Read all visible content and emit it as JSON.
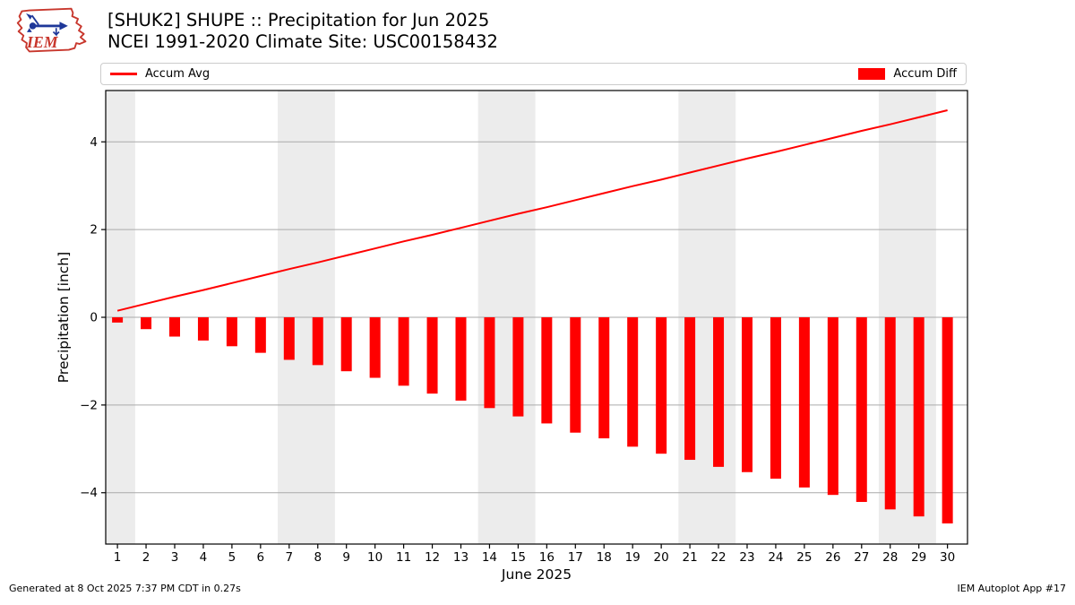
{
  "header": {
    "logo_text": "IEM",
    "title_line1": "[SHUK2] SHUPE :: Precipitation for Jun 2025",
    "title_line2": "NCEI 1991-2020 Climate Site: USC00158432"
  },
  "legend": {
    "avg_label": "Accum Avg",
    "diff_label": "Accum Diff"
  },
  "footer": {
    "generated": "Generated at 8 Oct 2025 7:37 PM CDT in 0.27s",
    "app": "IEM Autoplot App #17"
  },
  "colors": {
    "accent_red": "#ff0000",
    "grid": "#aaaaaa",
    "band": "#ececec",
    "axis": "#000000",
    "legend_border": "#cccccc",
    "logo_red": "#c8372d",
    "logo_blue": "#1e3799"
  },
  "chart_data": {
    "type": "bar",
    "title": "[SHUK2] SHUPE :: Precipitation for Jun 2025",
    "subtitle": "NCEI 1991-2020 Climate Site: USC00158432",
    "xlabel": "June 2025",
    "ylabel": "Precipitation [inch]",
    "xlim": [
      0.59,
      30.7
    ],
    "ylim": [
      -5.17,
      5.17
    ],
    "grid": true,
    "legend_position": "top-full-width",
    "x": [
      1,
      2,
      3,
      4,
      5,
      6,
      7,
      8,
      9,
      10,
      11,
      12,
      13,
      14,
      15,
      16,
      17,
      18,
      19,
      20,
      21,
      22,
      23,
      24,
      25,
      26,
      27,
      28,
      29,
      30
    ],
    "xticks": [
      1,
      2,
      3,
      4,
      5,
      6,
      7,
      8,
      9,
      10,
      11,
      12,
      13,
      14,
      15,
      16,
      17,
      18,
      19,
      20,
      21,
      22,
      23,
      24,
      25,
      26,
      27,
      28,
      29,
      30
    ],
    "yticks": [
      -4,
      -2,
      0,
      2,
      4
    ],
    "ytick_labels": [
      "−4",
      "−2",
      "0",
      "2",
      "4"
    ],
    "weekend_bands": [
      [
        0.59,
        1.62
      ],
      [
        6.6,
        8.6
      ],
      [
        13.6,
        15.6
      ],
      [
        20.6,
        22.6
      ],
      [
        27.6,
        29.6
      ]
    ],
    "series": [
      {
        "name": "Accum Avg",
        "type": "line",
        "color": "#ff0000",
        "values": [
          0.15,
          0.31,
          0.47,
          0.62,
          0.78,
          0.94,
          1.1,
          1.25,
          1.41,
          1.57,
          1.73,
          1.88,
          2.04,
          2.2,
          2.36,
          2.51,
          2.67,
          2.83,
          2.99,
          3.14,
          3.3,
          3.46,
          3.62,
          3.77,
          3.93,
          4.09,
          4.25,
          4.4,
          4.56,
          4.72
        ]
      },
      {
        "name": "Accum Diff",
        "type": "bar",
        "color": "#ff0000",
        "values": [
          -0.12,
          -0.27,
          -0.44,
          -0.53,
          -0.66,
          -0.81,
          -0.97,
          -1.09,
          -1.23,
          -1.38,
          -1.56,
          -1.74,
          -1.9,
          -2.07,
          -2.26,
          -2.42,
          -2.63,
          -2.76,
          -2.95,
          -3.11,
          -3.25,
          -3.41,
          -3.53,
          -3.68,
          -3.88,
          -4.05,
          -4.21,
          -4.38,
          -4.54,
          -4.7
        ]
      }
    ]
  }
}
